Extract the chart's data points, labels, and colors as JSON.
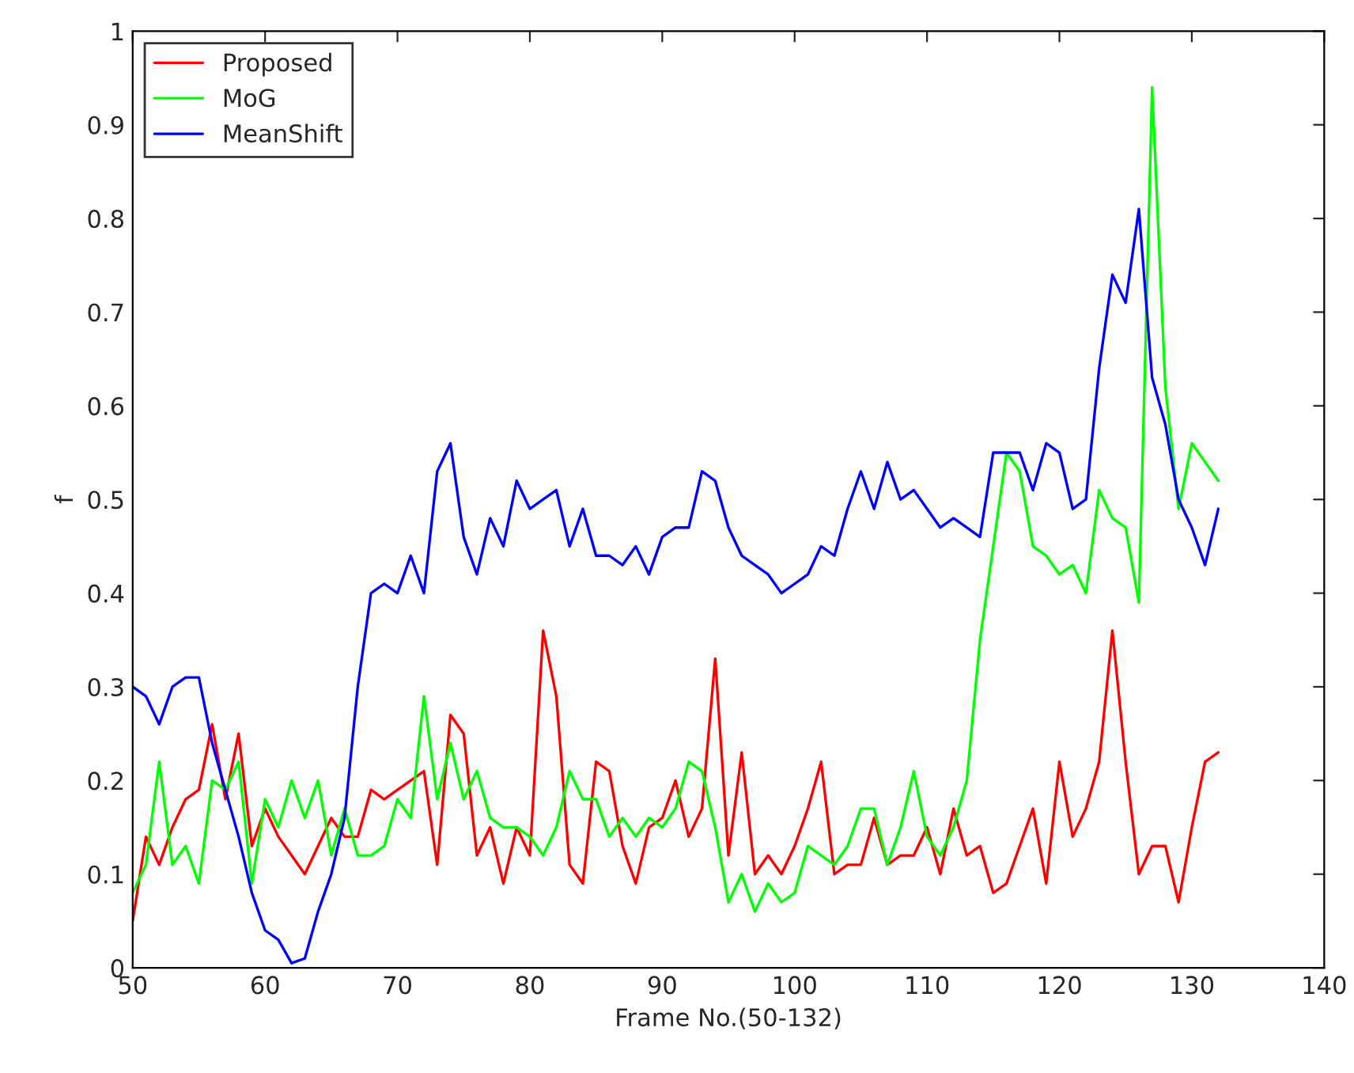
{
  "chart_data": {
    "type": "line",
    "xlabel": "Frame No.(50-132)",
    "ylabel": "f",
    "x": [
      50,
      51,
      52,
      53,
      54,
      55,
      56,
      57,
      58,
      59,
      60,
      61,
      62,
      63,
      64,
      65,
      66,
      67,
      68,
      69,
      70,
      71,
      72,
      73,
      74,
      75,
      76,
      77,
      78,
      79,
      80,
      81,
      82,
      83,
      84,
      85,
      86,
      87,
      88,
      89,
      90,
      91,
      92,
      93,
      94,
      95,
      96,
      97,
      98,
      99,
      100,
      101,
      102,
      103,
      104,
      105,
      106,
      107,
      108,
      109,
      110,
      111,
      112,
      113,
      114,
      115,
      116,
      117,
      118,
      119,
      120,
      121,
      122,
      123,
      124,
      125,
      126,
      127,
      128,
      129,
      130,
      131,
      132
    ],
    "series": [
      {
        "name": "Proposed",
        "color": "#ff0000",
        "values": [
          0.05,
          0.14,
          0.11,
          0.15,
          0.18,
          0.19,
          0.26,
          0.18,
          0.25,
          0.13,
          0.17,
          0.14,
          0.12,
          0.1,
          0.13,
          0.16,
          0.14,
          0.14,
          0.19,
          0.18,
          0.19,
          0.2,
          0.21,
          0.11,
          0.27,
          0.25,
          0.12,
          0.15,
          0.09,
          0.15,
          0.12,
          0.36,
          0.29,
          0.11,
          0.09,
          0.22,
          0.21,
          0.13,
          0.09,
          0.15,
          0.16,
          0.2,
          0.14,
          0.17,
          0.33,
          0.12,
          0.23,
          0.1,
          0.12,
          0.1,
          0.13,
          0.17,
          0.22,
          0.1,
          0.11,
          0.11,
          0.16,
          0.11,
          0.12,
          0.12,
          0.15,
          0.1,
          0.17,
          0.12,
          0.13,
          0.08,
          0.09,
          0.13,
          0.17,
          0.09,
          0.22,
          0.14,
          0.17,
          0.22,
          0.36,
          0.22,
          0.1,
          0.13,
          0.13,
          0.07,
          0.15,
          0.22,
          0.23
        ]
      },
      {
        "name": "MoG",
        "color": "#00ff00",
        "values": [
          0.08,
          0.11,
          0.22,
          0.11,
          0.13,
          0.09,
          0.2,
          0.19,
          0.22,
          0.09,
          0.18,
          0.15,
          0.2,
          0.16,
          0.2,
          0.12,
          0.17,
          0.12,
          0.12,
          0.13,
          0.18,
          0.16,
          0.29,
          0.18,
          0.24,
          0.18,
          0.21,
          0.16,
          0.15,
          0.15,
          0.14,
          0.12,
          0.15,
          0.21,
          0.18,
          0.18,
          0.14,
          0.16,
          0.14,
          0.16,
          0.15,
          0.17,
          0.22,
          0.21,
          0.15,
          0.07,
          0.1,
          0.06,
          0.09,
          0.07,
          0.08,
          0.13,
          0.12,
          0.11,
          0.13,
          0.17,
          0.17,
          0.11,
          0.15,
          0.21,
          0.14,
          0.12,
          0.15,
          0.2,
          0.35,
          0.45,
          0.55,
          0.53,
          0.45,
          0.44,
          0.42,
          0.43,
          0.4,
          0.51,
          0.48,
          0.47,
          0.39,
          0.94,
          0.62,
          0.49,
          0.56,
          0.54,
          0.52
        ]
      },
      {
        "name": "MeanShift",
        "color": "#0000ff",
        "values": [
          0.3,
          0.29,
          0.26,
          0.3,
          0.31,
          0.31,
          0.24,
          0.19,
          0.14,
          0.08,
          0.04,
          0.03,
          0.005,
          0.01,
          0.06,
          0.1,
          0.16,
          0.3,
          0.4,
          0.41,
          0.4,
          0.44,
          0.4,
          0.53,
          0.56,
          0.46,
          0.42,
          0.48,
          0.45,
          0.52,
          0.49,
          0.5,
          0.51,
          0.45,
          0.49,
          0.44,
          0.44,
          0.43,
          0.45,
          0.42,
          0.46,
          0.47,
          0.47,
          0.53,
          0.52,
          0.47,
          0.44,
          0.43,
          0.42,
          0.4,
          0.41,
          0.42,
          0.45,
          0.44,
          0.49,
          0.53,
          0.49,
          0.54,
          0.5,
          0.51,
          0.49,
          0.47,
          0.48,
          0.47,
          0.46,
          0.55,
          0.55,
          0.55,
          0.51,
          0.56,
          0.55,
          0.49,
          0.5,
          0.64,
          0.74,
          0.71,
          0.81,
          0.63,
          0.58,
          0.5,
          0.47,
          0.43,
          0.49
        ]
      }
    ],
    "xlim": [
      50,
      140
    ],
    "xticks": [
      50,
      60,
      70,
      80,
      90,
      100,
      110,
      120,
      130,
      140
    ],
    "ylim": [
      0,
      1
    ],
    "yticks": [
      0,
      0.1,
      0.2,
      0.3,
      0.4,
      0.5,
      0.6,
      0.7,
      0.8,
      0.9,
      1
    ],
    "grid": false,
    "legend": "top left",
    "marker": "none",
    "line_style": "solid"
  }
}
